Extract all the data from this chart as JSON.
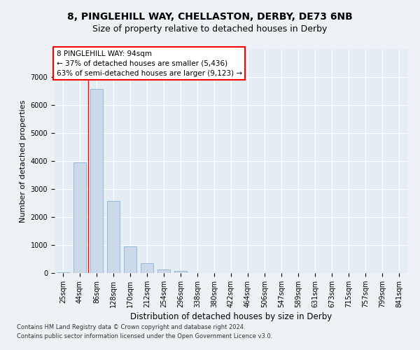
{
  "title_line1": "8, PINGLEHILL WAY, CHELLASTON, DERBY, DE73 6NB",
  "title_line2": "Size of property relative to detached houses in Derby",
  "xlabel": "Distribution of detached houses by size in Derby",
  "ylabel": "Number of detached properties",
  "bar_color": "#ccd9e8",
  "bar_edge_color": "#7aabcf",
  "categories": [
    "25sqm",
    "44sqm",
    "86sqm",
    "128sqm",
    "170sqm",
    "212sqm",
    "254sqm",
    "296sqm",
    "338sqm",
    "380sqm",
    "422sqm",
    "464sqm",
    "506sqm",
    "547sqm",
    "589sqm",
    "631sqm",
    "673sqm",
    "715sqm",
    "757sqm",
    "799sqm",
    "841sqm"
  ],
  "values": [
    25,
    3950,
    6580,
    2580,
    940,
    340,
    120,
    75,
    0,
    0,
    0,
    0,
    0,
    0,
    0,
    0,
    0,
    0,
    0,
    0,
    0
  ],
  "ylim": [
    0,
    8000
  ],
  "yticks": [
    0,
    1000,
    2000,
    3000,
    4000,
    5000,
    6000,
    7000
  ],
  "red_line_x": 1.5,
  "annotation_text": "8 PINGLEHILL WAY: 94sqm\n← 37% of detached houses are smaller (5,436)\n63% of semi-detached houses are larger (9,123) →",
  "footnote1": "Contains HM Land Registry data © Crown copyright and database right 2024.",
  "footnote2": "Contains public sector information licensed under the Open Government Licence v3.0.",
  "background_color": "#eef2f7",
  "plot_background": "#e4ecf4",
  "grid_color": "#ffffff",
  "title_fontsize": 10,
  "subtitle_fontsize": 9,
  "tick_fontsize": 7,
  "ylabel_fontsize": 8,
  "xlabel_fontsize": 8.5,
  "footnote_fontsize": 6,
  "annot_fontsize": 7.5
}
